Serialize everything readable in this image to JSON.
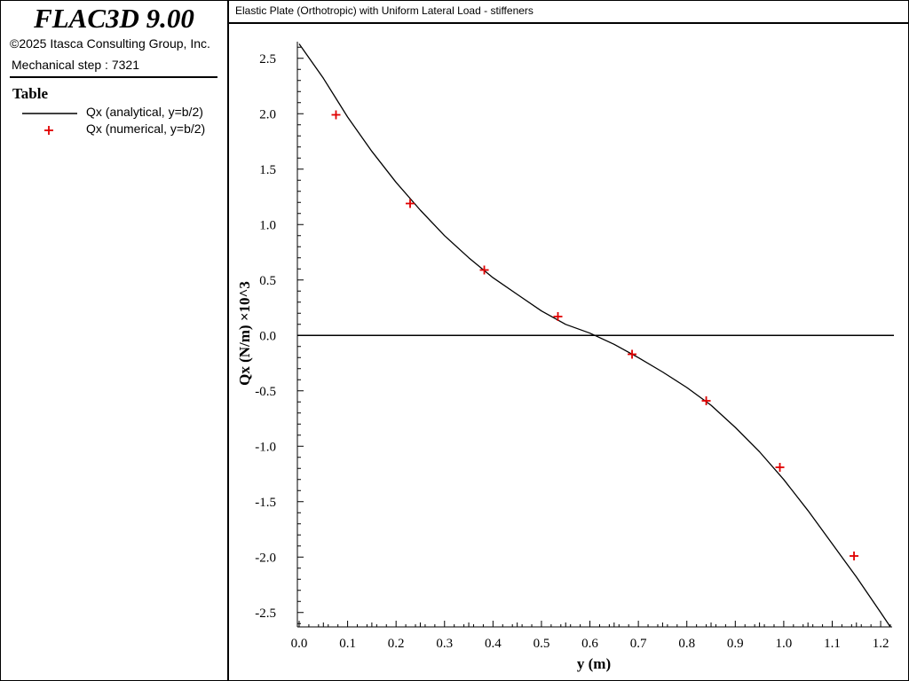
{
  "app": {
    "title": "FLAC3D 9.00",
    "copyright": "©2025 Itasca Consulting Group, Inc.",
    "step": "Mechanical step : 7321"
  },
  "legend": {
    "heading": "Table",
    "entries": [
      {
        "label": "Qx (analytical, y=b/2)",
        "style": "line",
        "color": "#000000"
      },
      {
        "label": "Qx (numerical, y=b/2)",
        "style": "cross",
        "color": "#e00000"
      }
    ]
  },
  "chart_data": {
    "type": "line",
    "title": "Elastic Plate (Orthotropic) with Uniform Lateral Load - stiffeners",
    "xlabel": "y (m)",
    "ylabel": "Qx (N/m) ×10^3",
    "xlim": [
      0.0,
      1.22
    ],
    "ylim": [
      -2.63,
      2.65
    ],
    "xticks": [
      "0.0",
      "0.1",
      "0.2",
      "0.3",
      "0.4",
      "0.5",
      "0.6",
      "0.7",
      "0.8",
      "0.9",
      "1.0",
      "1.1",
      "1.2"
    ],
    "yticks": [
      "2.5",
      "2.0",
      "1.5",
      "1.0",
      "0.5",
      "0.0",
      "-0.5",
      "-1.0",
      "-1.5",
      "-2.0",
      "-2.5"
    ],
    "series": [
      {
        "name": "Qx (analytical, y=b/2)",
        "kind": "line",
        "color": "#000000",
        "x": [
          0.0,
          0.05,
          0.1,
          0.15,
          0.2,
          0.25,
          0.3,
          0.35,
          0.4,
          0.45,
          0.5,
          0.55,
          0.6,
          0.61,
          0.65,
          0.7,
          0.75,
          0.8,
          0.85,
          0.9,
          0.95,
          1.0,
          1.05,
          1.1,
          1.15,
          1.2,
          1.22
        ],
        "y": [
          2.63,
          2.32,
          1.97,
          1.66,
          1.38,
          1.13,
          0.9,
          0.7,
          0.52,
          0.37,
          0.22,
          0.1,
          0.02,
          0.0,
          -0.08,
          -0.2,
          -0.33,
          -0.47,
          -0.63,
          -0.83,
          -1.05,
          -1.3,
          -1.58,
          -1.88,
          -2.18,
          -2.5,
          -2.63
        ]
      },
      {
        "name": "Qx (numerical, y=b/2)",
        "kind": "scatter",
        "color": "#e00000",
        "x": [
          0.076,
          0.229,
          0.382,
          0.534,
          0.687,
          0.84,
          0.992,
          1.145
        ],
        "y": [
          1.99,
          1.19,
          0.59,
          0.17,
          -0.17,
          -0.59,
          -1.19,
          -1.99
        ]
      }
    ]
  }
}
